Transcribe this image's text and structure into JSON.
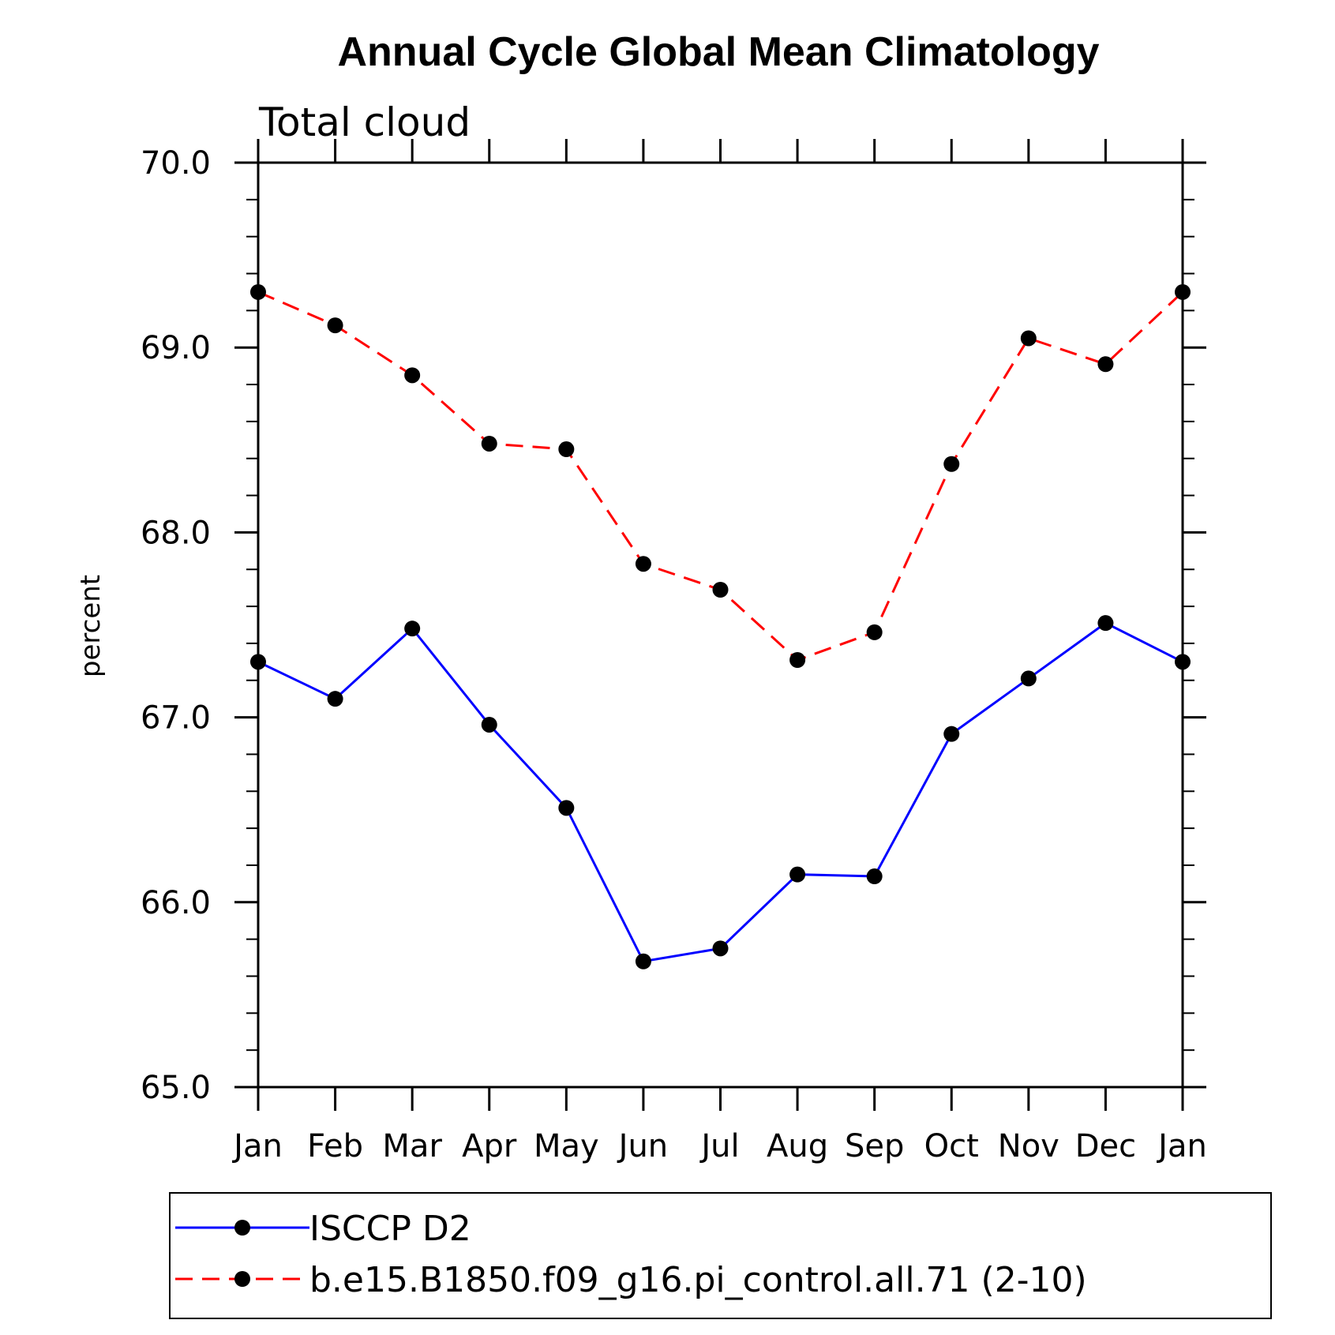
{
  "chart_data": {
    "type": "line",
    "title": "Annual Cycle Global Mean Climatology",
    "subtitle": "Total cloud",
    "xlabel": "",
    "ylabel": "percent",
    "categories": [
      "Jan",
      "Feb",
      "Mar",
      "Apr",
      "May",
      "Jun",
      "Jul",
      "Aug",
      "Sep",
      "Oct",
      "Nov",
      "Dec",
      "Jan"
    ],
    "ylim": [
      65.0,
      70.0
    ],
    "yticks": [
      65.0,
      66.0,
      67.0,
      68.0,
      69.0,
      70.0
    ],
    "ytick_labels": [
      "65.0",
      "66.0",
      "67.0",
      "68.0",
      "69.0",
      "70.0"
    ],
    "grid": false,
    "legend_position": "bottom",
    "series": [
      {
        "name": "ISCCP D2",
        "color": "#0000ff",
        "dash": "solid",
        "marker": "filled-circle",
        "values": [
          67.3,
          67.1,
          67.48,
          66.96,
          66.51,
          65.68,
          65.75,
          66.15,
          66.14,
          66.91,
          67.21,
          67.51,
          67.3
        ]
      },
      {
        "name": "b.e15.B1850.f09_g16.pi_control.all.71 (2-10)",
        "color": "#ff0000",
        "dash": "dashed",
        "marker": "filled-circle",
        "values": [
          69.3,
          69.12,
          68.85,
          68.48,
          68.45,
          67.83,
          67.69,
          67.31,
          67.46,
          68.37,
          69.05,
          68.91,
          69.3
        ]
      }
    ]
  }
}
